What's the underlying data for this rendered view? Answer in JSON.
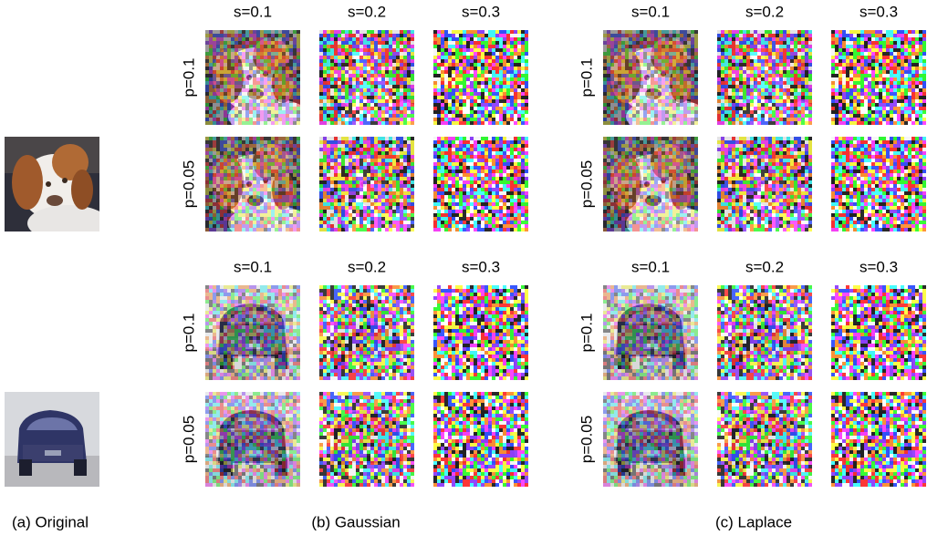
{
  "original": {
    "caption": "(a) Original"
  },
  "panels": [
    {
      "caption": "(b) Gaussian",
      "blocks": [
        {
          "column_labels": [
            "s=0.1",
            "s=0.2",
            "s=0.3"
          ],
          "row_labels": [
            "p=0.1",
            "p=0.05"
          ]
        },
        {
          "column_labels": [
            "s=0.1",
            "s=0.2",
            "s=0.3"
          ],
          "row_labels": [
            "p=0.1",
            "p=0.05"
          ]
        }
      ]
    },
    {
      "caption": "(c) Laplace",
      "blocks": [
        {
          "column_labels": [
            "s=0.1",
            "s=0.2",
            "s=0.3"
          ],
          "row_labels": [
            "p=0.1",
            "p=0.05"
          ]
        },
        {
          "column_labels": [
            "s=0.1",
            "s=0.2",
            "s=0.3"
          ],
          "row_labels": [
            "p=0.1",
            "p=0.05"
          ]
        }
      ]
    }
  ]
}
